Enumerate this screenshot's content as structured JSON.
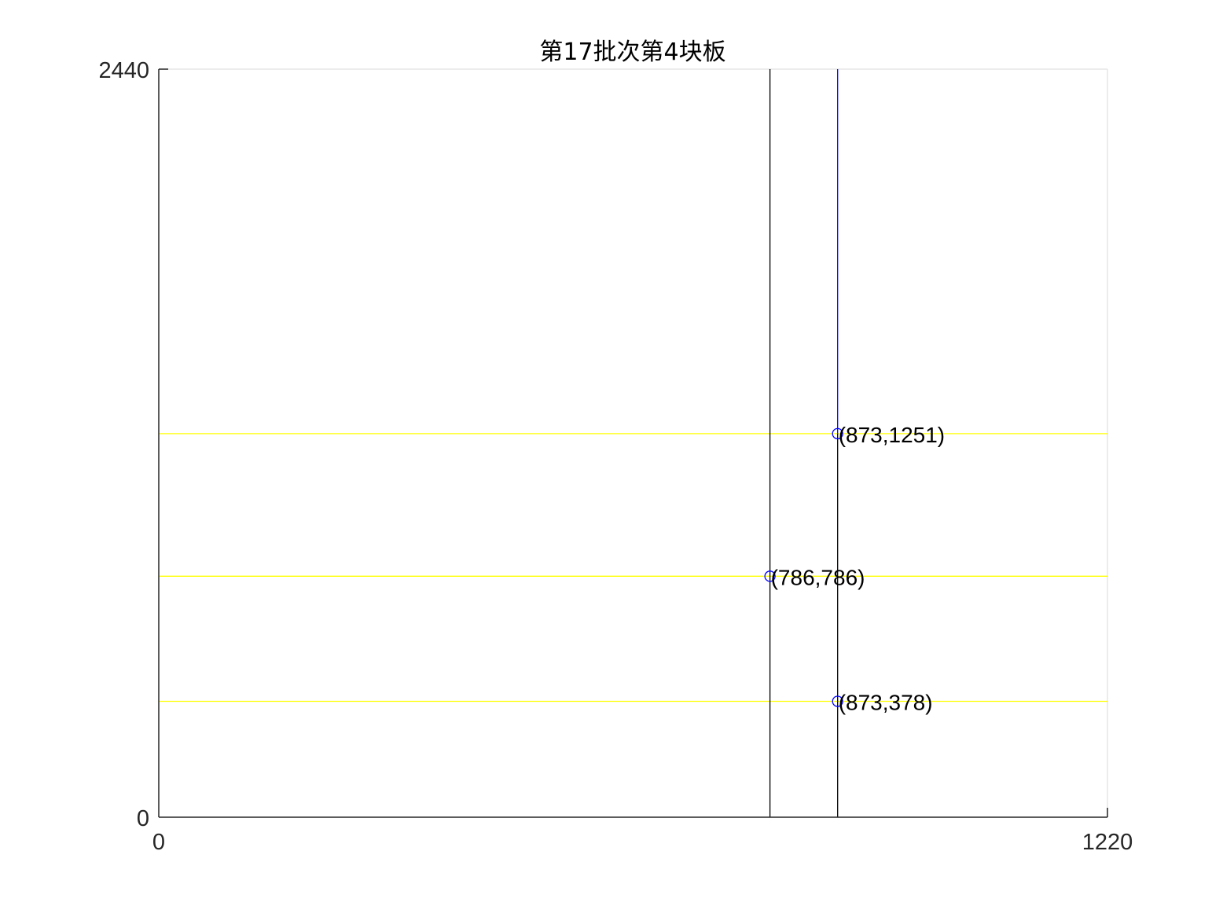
{
  "chart_data": {
    "type": "line",
    "title": "第17批次第4块板",
    "xlabel": "",
    "ylabel": "",
    "xlim": [
      0,
      1220
    ],
    "ylim": [
      0,
      2440
    ],
    "xticks": [
      "0",
      "1220"
    ],
    "yticks": [
      "0",
      "2440"
    ],
    "grid": false,
    "colors": {
      "axes": "#262626",
      "frame": "#e6e6e6",
      "cut_black": "#000000",
      "cut_blue": "#0000ff",
      "cut_yellow": "#ffff00",
      "marker": "#0000ff"
    },
    "yellow_lines": [
      {
        "y": 1251,
        "x_from": 0,
        "x_to": 1220
      },
      {
        "y": 786,
        "x_from": 0,
        "x_to": 1220
      },
      {
        "y": 378,
        "x_from": 0,
        "x_to": 1220
      }
    ],
    "black_lines": [
      {
        "x": 786,
        "y_from": 0,
        "y_to": 2440
      },
      {
        "x": 873,
        "y_from": 0,
        "y_to": 1251
      }
    ],
    "blue_lines": [
      {
        "x": 873,
        "y_from": 1251,
        "y_to": 2440
      }
    ],
    "points": [
      {
        "x": 873,
        "y": 1251,
        "label": "(873,1251)"
      },
      {
        "x": 786,
        "y": 786,
        "label": "(786,786)"
      },
      {
        "x": 873,
        "y": 378,
        "label": "(873,378)"
      }
    ]
  }
}
